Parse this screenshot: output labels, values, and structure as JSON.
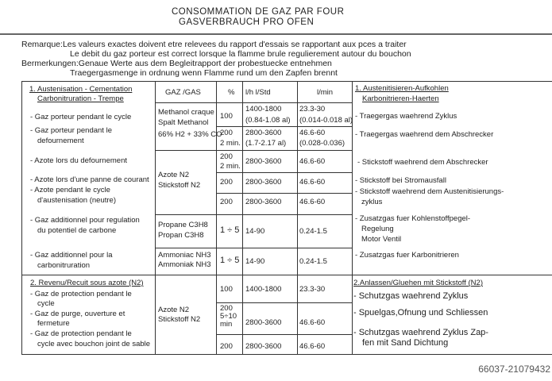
{
  "title": {
    "line1": "CONSOMMATION DE GAZ PAR FOUR",
    "line2": "GASVERBRAUCH PRO OFEN"
  },
  "remarks": [
    "Remarque:Les valeurs exactes doivent etre relevees du rapport d'essais se rapportant aux pces a traiter",
    "Le debit du gaz porteur est correct lorsque la flamme brule regulierement autour du bouchon",
    "Bermerkungen:Genaue Werte aus dem Begleitrapport der probestuecke entnehmen",
    "Traegergasmenge in ordnung wenn Flamme rund um den Zapfen brennt"
  ],
  "headers": {
    "gas": "GAZ /GAS",
    "pct": "%",
    "lh": "l/h  l/Std",
    "lmin": "l/min"
  },
  "section1": {
    "left_title": [
      "1. Austenisation - Cementation",
      "Carbonitruration - Trempe"
    ],
    "left_items": [
      "- Gaz porteur pendant le cycle",
      "- Gaz porteur pendant le",
      "defournement",
      "- Azote lors du defournement",
      "- Azote lors d'une panne de courant",
      "- Azote pendant le cycle",
      "d'austenisation (neutre)",
      "- Gaz additionnel pour regulation",
      "du potentiel de carbone",
      "- Gaz additionnel pour la",
      "carbonitruration"
    ],
    "gases": [
      [
        "Methanol craque",
        "Spalt Methanol",
        "66% H2 + 33% CO"
      ],
      [
        "Azote N2",
        "Stickstoff N2"
      ],
      [
        "Propane C3H8",
        "Propan C3H8"
      ],
      [
        "Ammoniac NH3",
        "Ammoniak NH3"
      ]
    ],
    "rows": [
      {
        "pct": [
          "100"
        ],
        "lh": [
          "1400-1800",
          "(0.84-1.08 al)"
        ],
        "lmin": [
          "23.3-30",
          "(0.014-0.018 al)"
        ]
      },
      {
        "pct": [
          "200",
          "2 min."
        ],
        "lh": [
          "2800-3600",
          "(1.7-2.17 al)"
        ],
        "lmin": [
          "46.6-60",
          "(0.028-0.036)"
        ]
      },
      {
        "pct": [
          "200",
          "2 min."
        ],
        "lh": [
          "2800-3600"
        ],
        "lmin": [
          "46.6-60"
        ]
      },
      {
        "pct": [
          "200"
        ],
        "lh": [
          "2800-3600"
        ],
        "lmin": [
          "46.6-60"
        ]
      },
      {
        "pct": [
          "200"
        ],
        "lh": [
          "2800-3600"
        ],
        "lmin": [
          "46.6-60"
        ]
      },
      {
        "pct": [
          "1 ÷ 5"
        ],
        "lh": [
          "14-90"
        ],
        "lmin": [
          "0.24-1.5"
        ]
      },
      {
        "pct": [
          "1 ÷ 5"
        ],
        "lh": [
          "14-90"
        ],
        "lmin": [
          "0.24-1.5"
        ]
      }
    ],
    "right_title": [
      "1. Austenitisieren-Aufkohlen",
      "Karbonitrieren-Haerten"
    ],
    "right_items": [
      "- Traegergas waehrend Zyklus",
      "- Traegergas waehrend dem Abschrecker",
      "- Stickstoff waehrend dem Abschrecker",
      "- Stickstoff bei Stromausfall",
      "- Stickstoff waehrend dem Austenitisierungs-",
      "zyklus",
      "- Zusatzgas fuer Kohlenstoffpegel-",
      "Regelung",
      "Motor Ventil",
      "- Zusatzgas fuer Karbonitrieren"
    ]
  },
  "section2": {
    "left_title": "2. Revenu/Recuit sous azote (N2)",
    "left_items": [
      "- Gaz de protection pendant le",
      "cycle",
      "- Gaz de purge, ouverture et",
      "fermeture",
      "- Gaz de protection pendant le",
      "cycle avec bouchon joint de sable"
    ],
    "gas": [
      "Azote N2",
      "Stickstoff N2"
    ],
    "rows": [
      {
        "pct": [
          "100"
        ],
        "lh": [
          "1400-1800"
        ],
        "lmin": [
          "23.3-30"
        ]
      },
      {
        "pct": [
          "200",
          "5÷10",
          "min"
        ],
        "lh": [
          "2800-3600"
        ],
        "lmin": [
          "46.6-60"
        ]
      },
      {
        "pct": [
          "200"
        ],
        "lh": [
          "2800-3600"
        ],
        "lmin": [
          "46.6-60"
        ]
      }
    ],
    "right_title": "2.Anlassen/Gluehen mit Stickstoff (N2)",
    "right_items": [
      "- Schutzgas waehrend Zyklus",
      "- Spuelgas,Ofnung und Schliessen",
      "- Schutzgas waehrend Zyklus Zap-",
      "fen mit Sand Dichtung"
    ]
  },
  "watermark": "66037-21079432"
}
